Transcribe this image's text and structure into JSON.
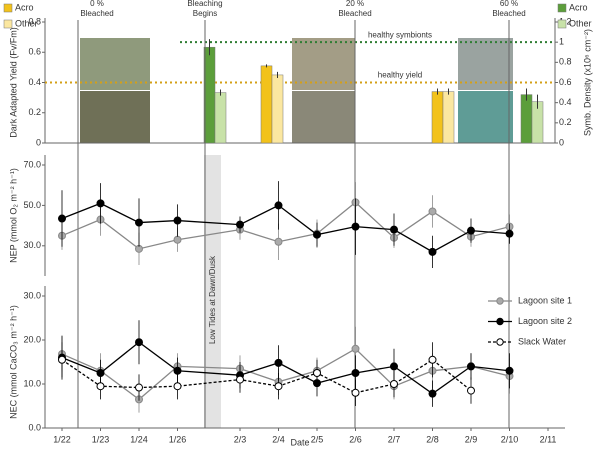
{
  "chart_data": [
    {
      "type": "bar",
      "ylabel": "Dark Adapted Yield (Fv/Fm)",
      "y2label": "Symb. Density (x10⁶ cm⁻²)",
      "ylim": [
        0,
        0.8
      ],
      "yticks": [
        0,
        0.2,
        0.4,
        0.6,
        0.8
      ],
      "y2lim": [
        0,
        1.2
      ],
      "y2ticks": [
        0,
        0.2,
        0.4,
        0.6,
        0.8,
        1,
        1.2
      ],
      "categories": [
        null,
        null,
        null,
        null
      ],
      "series": [
        {
          "name": "Acro",
          "color": "#f2c21b",
          "axis": "y",
          "values": [
            null,
            0.51,
            0.34,
            null
          ],
          "errors": [
            null,
            0.01,
            0.02,
            null
          ]
        },
        {
          "name": "Other",
          "color": "#fbe7a0",
          "axis": "y",
          "values": [
            null,
            0.45,
            0.34,
            null
          ],
          "errors": [
            null,
            0.02,
            0.02,
            null
          ]
        },
        {
          "name": "Acro",
          "color": "#5c9e3b",
          "axis": "y2",
          "values": [
            0.95,
            null,
            null,
            0.48
          ],
          "errors": [
            0.08,
            null,
            null,
            0.06
          ]
        },
        {
          "name": "Other",
          "color": "#c8e2a8",
          "axis": "y2",
          "values": [
            0.5,
            null,
            null,
            0.41
          ],
          "errors": [
            0.03,
            null,
            null,
            0.07
          ]
        }
      ],
      "references": [
        {
          "label": "healthy symbionts",
          "value": 1,
          "axis": "y2",
          "color": "#2e7d32"
        },
        {
          "label": "healthy yield",
          "value": 0.4,
          "axis": "y",
          "color": "#d4a017"
        }
      ],
      "annotations": [
        {
          "lines": [
            "0 %",
            "Bleached"
          ]
        },
        {
          "lines": [
            "Bleaching",
            "Begins"
          ]
        },
        {
          "lines": [
            "20 %",
            "Bleached"
          ]
        },
        {
          "lines": [
            "60 %",
            "Bleached"
          ]
        }
      ]
    },
    {
      "type": "line",
      "ylabel": "NEP  (mmol O₂ m⁻² h⁻¹)",
      "ylim": [
        20,
        70
      ],
      "yticks": [
        {
          "value": 30,
          "label": "30.0"
        },
        {
          "value": 50,
          "label": "50.0"
        },
        {
          "value": 70,
          "label": "70.0"
        }
      ],
      "band_label": "Low Tides at Dawn/Dusk",
      "categories": [
        null,
        null,
        null,
        null,
        null,
        null,
        null,
        null,
        null,
        null,
        null,
        null,
        null
      ],
      "series": [
        {
          "name": "Lagoon site 1",
          "color": "#888888",
          "marker_fill": "#aaaaaa",
          "dashed": false,
          "values": [
            35,
            43,
            28.5,
            33,
            38,
            32,
            36,
            51.5,
            34,
            47,
            34.5,
            39.5,
            null
          ],
          "errors": [
            7,
            8,
            8,
            6,
            5,
            9,
            7,
            10,
            5,
            8,
            5,
            6,
            null
          ]
        },
        {
          "name": "Lagoon site 2",
          "color": "#000000",
          "marker_fill": "#000000",
          "dashed": false,
          "values": [
            43.5,
            51,
            41.5,
            42.5,
            40.5,
            50,
            35.5,
            39.5,
            38,
            27,
            37.5,
            36,
            null
          ],
          "errors": [
            14,
            10,
            12,
            8,
            4,
            12,
            6,
            14,
            8,
            8,
            6,
            5,
            null
          ]
        }
      ]
    },
    {
      "type": "line",
      "ylabel": "NEC  (mmol CaCO₃ m⁻² h⁻¹)",
      "xlabel": "Date",
      "ylim": [
        0,
        30
      ],
      "yticks": [
        {
          "value": 0,
          "label": "0.0"
        },
        {
          "value": 10,
          "label": "10.0"
        },
        {
          "value": 20,
          "label": "20.0"
        },
        {
          "value": 30,
          "label": "30.0"
        }
      ],
      "categories": [
        "1/22",
        "1/23",
        "1/24",
        "1/26",
        "2/3",
        "2/4",
        "2/5",
        "2/6",
        "2/7",
        "2/8",
        "2/9",
        "2/10",
        "2/11"
      ],
      "series": [
        {
          "name": "Lagoon site 1",
          "color": "#888888",
          "marker_fill": "#aaaaaa",
          "dashed": false,
          "values": [
            16.8,
            13,
            6.5,
            14,
            13.5,
            10.5,
            13,
            18,
            9.5,
            13,
            14,
            11.8,
            null
          ],
          "errors": [
            4,
            4,
            3,
            3,
            3,
            3,
            3,
            5,
            3,
            4,
            3,
            4,
            null
          ]
        },
        {
          "name": "Lagoon site 2",
          "color": "#000000",
          "marker_fill": "#000000",
          "dashed": false,
          "values": [
            16,
            12.5,
            19.5,
            13,
            12,
            14.8,
            10.2,
            12.5,
            14,
            7.8,
            14,
            13,
            null
          ],
          "errors": [
            5,
            3,
            5,
            3,
            3,
            4,
            3,
            4,
            4,
            3,
            3,
            4,
            null
          ]
        },
        {
          "name": "Slack Water",
          "color": "#000000",
          "marker_fill": "#ffffff",
          "dashed": true,
          "values": [
            15.5,
            9.5,
            9.2,
            9.5,
            11,
            9.5,
            12.5,
            8,
            10,
            15.5,
            8.5,
            null,
            null
          ],
          "errors": [
            4,
            3,
            3,
            3,
            3,
            3,
            3,
            3,
            3,
            4,
            3,
            null,
            null
          ]
        }
      ]
    }
  ]
}
